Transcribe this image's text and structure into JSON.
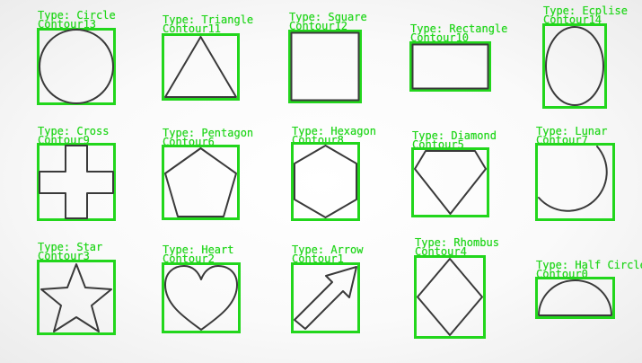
{
  "image": {
    "accent_color": "#22d61c",
    "stroke_color": "#3a3a3a"
  },
  "shapes": [
    {
      "id": "circle",
      "type_label": "Type: Circle",
      "contour_label": "Contour13"
    },
    {
      "id": "triangle",
      "type_label": "Type: Triangle",
      "contour_label": "Contour11"
    },
    {
      "id": "square",
      "type_label": "Type: Square",
      "contour_label": "Contour12"
    },
    {
      "id": "rectangle",
      "type_label": "Type: Rectangle",
      "contour_label": "Contour10"
    },
    {
      "id": "ecplise",
      "type_label": "Type: Ecplise",
      "contour_label": "Contour14"
    },
    {
      "id": "cross",
      "type_label": "Type: Cross",
      "contour_label": "Contour9"
    },
    {
      "id": "pentagon",
      "type_label": "Type: Pentagon",
      "contour_label": "Contour6"
    },
    {
      "id": "hexagon",
      "type_label": "Type: Hexagon",
      "contour_label": "Contour8"
    },
    {
      "id": "diamond",
      "type_label": "Type: Diamond",
      "contour_label": "Contour5"
    },
    {
      "id": "lunar",
      "type_label": "Type: Lunar",
      "contour_label": "Contour7"
    },
    {
      "id": "star",
      "type_label": "Type: Star",
      "contour_label": "Contour3"
    },
    {
      "id": "heart",
      "type_label": "Type: Heart",
      "contour_label": "Contour2"
    },
    {
      "id": "arrow",
      "type_label": "Type: Arrow",
      "contour_label": "Contour1"
    },
    {
      "id": "rhombus",
      "type_label": "Type: Rhombus",
      "contour_label": "Contour4"
    },
    {
      "id": "half-circle",
      "type_label": "Type: Half Circle",
      "contour_label": "Contour0"
    }
  ]
}
